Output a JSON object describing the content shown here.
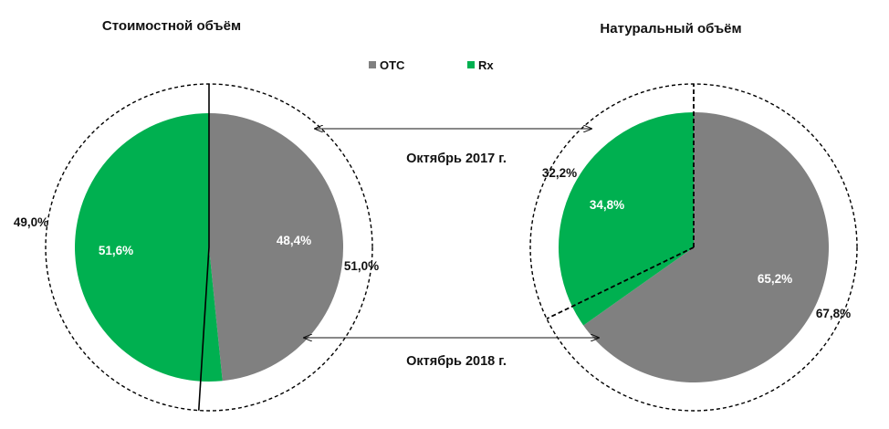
{
  "colors": {
    "otc": "#808080",
    "rx": "#00b050",
    "ring": "#000000"
  },
  "legend": [
    {
      "key": "otc",
      "label": "OTC",
      "color": "#808080"
    },
    {
      "key": "rx",
      "label": "Rx",
      "color": "#00b050"
    }
  ],
  "periods": {
    "inner": "Октябрь 2017 г.",
    "outer": "Октябрь 2018 г."
  },
  "chart_data": [
    {
      "type": "pie",
      "title": "Стоимостной объём",
      "inner": {
        "period": "Октябрь 2017 г.",
        "slices": [
          {
            "name": "OTC",
            "value": 48.4,
            "label": "48,4%"
          },
          {
            "name": "Rx",
            "value": 51.6,
            "label": "51,6%"
          }
        ]
      },
      "outer": {
        "period": "Октябрь 2018 г.",
        "slices": [
          {
            "name": "OTC",
            "value": 51.0,
            "label": "51,0%"
          },
          {
            "name": "Rx",
            "value": 49.0,
            "label": "49,0%"
          }
        ]
      }
    },
    {
      "type": "pie",
      "title": "Натуральный объём",
      "inner": {
        "period": "Октябрь 2017 г.",
        "slices": [
          {
            "name": "OTC",
            "value": 65.2,
            "label": "65,2%"
          },
          {
            "name": "Rx",
            "value": 34.8,
            "label": "34,8%"
          }
        ]
      },
      "outer": {
        "period": "Октябрь 2018 г.",
        "slices": [
          {
            "name": "OTC",
            "value": 67.8,
            "label": "67,8%"
          },
          {
            "name": "Rx",
            "value": 32.2,
            "label": "32,2%"
          }
        ]
      }
    }
  ]
}
